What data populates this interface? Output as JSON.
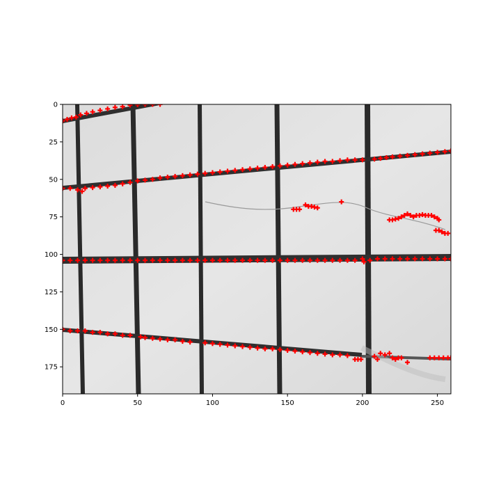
{
  "chart_data": {
    "type": "scatter",
    "title": "",
    "xlabel": "",
    "ylabel": "",
    "xlim": [
      0,
      259
    ],
    "ylim": [
      193,
      0
    ],
    "y_inverted": true,
    "grid": false,
    "xticks": [
      0,
      50,
      100,
      150,
      200,
      250
    ],
    "yticks": [
      0,
      25,
      50,
      75,
      100,
      125,
      150,
      175
    ],
    "background_image": "grayscale photo of a tiled wall with dark grout lines",
    "colors": {
      "markers": "#ff0000",
      "image_light": "#e2e2e2",
      "grout": "#2a2a2a",
      "axes": "#000000"
    },
    "series": [
      {
        "marker": "+",
        "color": "#ff0000",
        "points": [
          [
            0,
            11
          ],
          [
            3,
            10
          ],
          [
            6,
            9
          ],
          [
            9,
            8.5
          ],
          [
            12,
            7
          ],
          [
            16,
            6
          ],
          [
            20,
            5
          ],
          [
            25,
            4
          ],
          [
            30,
            3
          ],
          [
            35,
            2
          ],
          [
            40,
            1.5
          ],
          [
            45,
            0.5
          ],
          [
            50,
            0.2
          ],
          [
            55,
            0
          ],
          [
            60,
            0
          ],
          [
            65,
            0
          ],
          [
            0,
            56
          ],
          [
            5,
            56
          ],
          [
            10,
            57
          ],
          [
            13,
            58
          ],
          [
            15,
            56
          ],
          [
            20,
            55.5
          ],
          [
            25,
            55
          ],
          [
            30,
            54.5
          ],
          [
            35,
            54
          ],
          [
            40,
            53
          ],
          [
            45,
            52
          ],
          [
            50,
            51
          ],
          [
            55,
            50.5
          ],
          [
            60,
            50
          ],
          [
            65,
            49
          ],
          [
            70,
            48.5
          ],
          [
            75,
            48
          ],
          [
            80,
            47.5
          ],
          [
            85,
            47
          ],
          [
            90,
            46.5
          ],
          [
            95,
            46
          ],
          [
            100,
            45.5
          ],
          [
            105,
            45
          ],
          [
            110,
            44.5
          ],
          [
            115,
            44
          ],
          [
            120,
            43.5
          ],
          [
            125,
            43
          ],
          [
            130,
            42.5
          ],
          [
            135,
            42
          ],
          [
            140,
            41.5
          ],
          [
            145,
            41
          ],
          [
            150,
            40.5
          ],
          [
            155,
            40
          ],
          [
            160,
            39.5
          ],
          [
            165,
            39
          ],
          [
            170,
            38.5
          ],
          [
            175,
            38
          ],
          [
            180,
            38
          ],
          [
            185,
            37.5
          ],
          [
            190,
            37
          ],
          [
            195,
            37
          ],
          [
            200,
            37
          ],
          [
            208,
            36.5
          ],
          [
            212,
            36
          ],
          [
            216,
            35.5
          ],
          [
            220,
            35
          ],
          [
            225,
            34.5
          ],
          [
            230,
            34
          ],
          [
            235,
            33.5
          ],
          [
            240,
            33
          ],
          [
            245,
            32.5
          ],
          [
            250,
            32
          ],
          [
            255,
            31.5
          ],
          [
            259,
            31
          ],
          [
            154,
            70
          ],
          [
            156,
            70
          ],
          [
            158,
            70
          ],
          [
            162,
            67
          ],
          [
            164,
            68
          ],
          [
            166,
            68
          ],
          [
            168,
            68.5
          ],
          [
            170,
            69
          ],
          [
            186,
            65
          ],
          [
            218,
            77
          ],
          [
            220,
            77
          ],
          [
            222,
            76.5
          ],
          [
            224,
            76
          ],
          [
            226,
            75
          ],
          [
            228,
            74
          ],
          [
            230,
            73
          ],
          [
            232,
            74
          ],
          [
            234,
            75
          ],
          [
            236,
            74
          ],
          [
            238,
            74
          ],
          [
            240,
            73.5
          ],
          [
            242,
            74
          ],
          [
            244,
            74
          ],
          [
            246,
            74
          ],
          [
            248,
            75
          ],
          [
            250,
            76
          ],
          [
            251,
            77
          ],
          [
            249,
            84
          ],
          [
            251,
            84
          ],
          [
            253,
            85
          ],
          [
            255,
            86
          ],
          [
            257,
            86
          ],
          [
            0,
            104
          ],
          [
            5,
            104
          ],
          [
            10,
            104
          ],
          [
            15,
            104
          ],
          [
            20,
            104
          ],
          [
            25,
            104
          ],
          [
            30,
            104
          ],
          [
            35,
            104
          ],
          [
            40,
            104
          ],
          [
            45,
            104
          ],
          [
            50,
            104
          ],
          [
            55,
            104
          ],
          [
            60,
            104
          ],
          [
            65,
            104
          ],
          [
            70,
            104
          ],
          [
            75,
            104
          ],
          [
            80,
            104
          ],
          [
            85,
            104
          ],
          [
            90,
            104
          ],
          [
            95,
            104
          ],
          [
            100,
            104
          ],
          [
            105,
            104
          ],
          [
            110,
            104
          ],
          [
            115,
            104
          ],
          [
            120,
            104
          ],
          [
            125,
            104
          ],
          [
            130,
            104
          ],
          [
            135,
            104
          ],
          [
            140,
            104
          ],
          [
            145,
            104
          ],
          [
            150,
            104
          ],
          [
            155,
            104
          ],
          [
            160,
            104
          ],
          [
            165,
            104
          ],
          [
            170,
            104
          ],
          [
            175,
            104
          ],
          [
            180,
            104
          ],
          [
            185,
            104
          ],
          [
            190,
            104
          ],
          [
            195,
            104
          ],
          [
            200,
            103
          ],
          [
            201,
            105
          ],
          [
            205,
            104
          ],
          [
            210,
            103
          ],
          [
            215,
            103
          ],
          [
            220,
            103
          ],
          [
            225,
            103
          ],
          [
            230,
            103
          ],
          [
            235,
            103
          ],
          [
            240,
            103
          ],
          [
            245,
            103
          ],
          [
            250,
            103
          ],
          [
            255,
            103
          ],
          [
            259,
            103
          ],
          [
            0,
            150
          ],
          [
            5,
            151
          ],
          [
            10,
            151
          ],
          [
            15,
            151
          ],
          [
            20,
            152
          ],
          [
            25,
            152
          ],
          [
            30,
            153
          ],
          [
            35,
            153
          ],
          [
            40,
            154
          ],
          [
            45,
            154
          ],
          [
            52,
            155
          ],
          [
            55,
            155.5
          ],
          [
            60,
            156
          ],
          [
            65,
            156.5
          ],
          [
            70,
            157
          ],
          [
            75,
            157
          ],
          [
            80,
            158
          ],
          [
            85,
            158.5
          ],
          [
            95,
            159
          ],
          [
            100,
            159.5
          ],
          [
            105,
            160
          ],
          [
            110,
            160.5
          ],
          [
            115,
            161
          ],
          [
            120,
            161.5
          ],
          [
            125,
            162
          ],
          [
            130,
            162.5
          ],
          [
            135,
            163
          ],
          [
            140,
            163
          ],
          [
            145,
            163.5
          ],
          [
            150,
            164
          ],
          [
            155,
            164.5
          ],
          [
            160,
            165
          ],
          [
            165,
            165.5
          ],
          [
            170,
            166
          ],
          [
            175,
            166.5
          ],
          [
            180,
            167
          ],
          [
            185,
            167
          ],
          [
            190,
            167.5
          ],
          [
            195,
            170
          ],
          [
            197,
            170
          ],
          [
            199,
            170
          ],
          [
            208,
            168
          ],
          [
            210,
            170
          ],
          [
            212,
            166
          ],
          [
            215,
            167
          ],
          [
            218,
            166
          ],
          [
            220,
            169
          ],
          [
            222,
            170
          ],
          [
            224,
            169
          ],
          [
            226,
            169
          ],
          [
            230,
            172
          ],
          [
            245,
            169
          ],
          [
            248,
            169
          ],
          [
            251,
            169
          ],
          [
            254,
            169
          ],
          [
            257,
            169
          ],
          [
            259,
            169
          ]
        ]
      }
    ]
  }
}
